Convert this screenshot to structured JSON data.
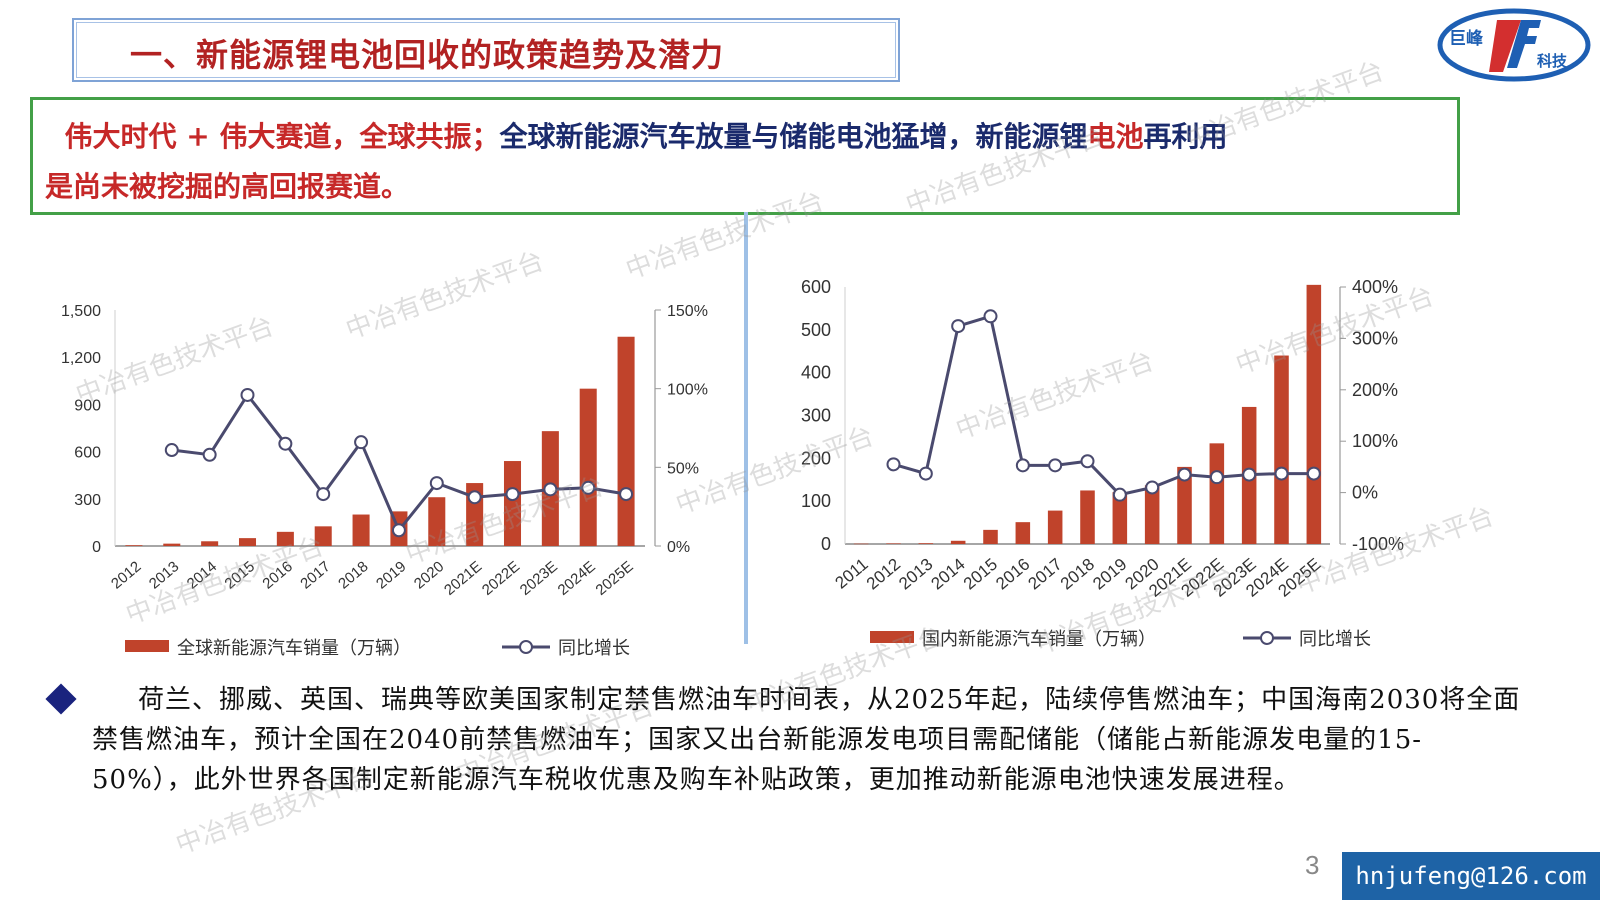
{
  "title": "一、新能源锂电池回收的政策趋势及潜力",
  "logo": {
    "text_top": "巨峰",
    "text_bottom": "科技",
    "mark": "JF"
  },
  "subtitle": {
    "part_red": "伟大时代 + 伟大赛道，全球共振；",
    "part_navy": "全球新能源汽车放量与储能电池猛增，新能源锂",
    "part_red2": "电池",
    "part_navy2": "再利用",
    "part_red3": "是尚未被挖掘的高回报赛道。"
  },
  "body": {
    "line1": "荷兰、挪威、英国、瑞典等欧美国家制定禁售燃油车时间表，从2025年起，陆续停售燃油车；",
    "rest": "中国海南2030将全面禁售燃油车，预计全国在2040前禁售燃油车；国家又出台新能源发电项目需配储能（储能占新能源发电量的15-50%），此外世界各国制定新能源汽车税收优惠及购车补贴政策，更加推动新能源电池快速发展进程。"
  },
  "page_number": "3",
  "email": "hnjufeng@126.com",
  "watermark": "中冶有色技术平台",
  "colors": {
    "bar": "#c0432b",
    "line": "#4a4a6e",
    "title": "#b22222",
    "accent": "#1e63a6"
  },
  "chart_data": [
    {
      "type": "bar",
      "categories": [
        "2012",
        "2013",
        "2014",
        "2015",
        "2016",
        "2017",
        "2018",
        "2019",
        "2020",
        "2021E",
        "2022E",
        "2023E",
        "2024E",
        "2025E"
      ],
      "series": [
        {
          "name": "全球新能源汽车销量（万辆）",
          "type": "bar",
          "axis": "left",
          "values": [
            5,
            15,
            30,
            50,
            90,
            125,
            200,
            220,
            310,
            400,
            540,
            730,
            1000,
            1330
          ]
        },
        {
          "name": "同比增长",
          "type": "line",
          "axis": "right",
          "values": [
            null,
            61,
            58,
            96,
            65,
            33,
            66,
            10,
            40,
            31,
            33,
            36,
            37,
            33
          ]
        }
      ],
      "left_ticks": [
        "0",
        "300",
        "600",
        "900",
        "1,200",
        "1,500"
      ],
      "right_ticks": [
        "0%",
        "50%",
        "100%",
        "150%"
      ],
      "ylim_left": [
        0,
        1500
      ],
      "ylim_right": [
        0,
        150
      ]
    },
    {
      "type": "bar",
      "categories": [
        "2011",
        "2012",
        "2013",
        "2014",
        "2015",
        "2016",
        "2017",
        "2018",
        "2019",
        "2020",
        "2021E",
        "2022E",
        "2023E",
        "2024E",
        "2025E"
      ],
      "series": [
        {
          "name": "国内新能源汽车销量（万辆）",
          "type": "bar",
          "axis": "left",
          "values": [
            0.8,
            1.3,
            1.8,
            7.5,
            33,
            51,
            78,
            125,
            121,
            137,
            180,
            235,
            320,
            440,
            605
          ]
        },
        {
          "name": "同比增长",
          "type": "line",
          "axis": "right",
          "values": [
            null,
            55,
            37,
            324,
            343,
            53,
            53,
            61,
            -4,
            10,
            35,
            30,
            35,
            37,
            37
          ]
        }
      ],
      "left_ticks": [
        "0",
        "100",
        "200",
        "300",
        "400",
        "500",
        "600"
      ],
      "right_ticks": [
        "-100%",
        "0%",
        "100%",
        "200%",
        "300%",
        "400%"
      ],
      "ylim_left": [
        0,
        600
      ],
      "ylim_right": [
        -100,
        400
      ]
    }
  ]
}
